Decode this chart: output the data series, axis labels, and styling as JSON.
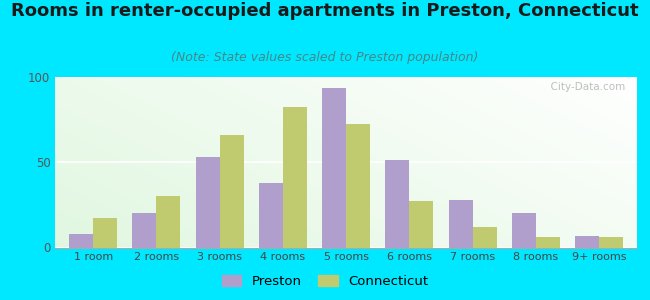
{
  "title": "Rooms in renter-occupied apartments in Preston, Connecticut",
  "subtitle": "(Note: State values scaled to Preston population)",
  "categories": [
    "1 room",
    "2 rooms",
    "3 rooms",
    "4 rooms",
    "5 rooms",
    "6 rooms",
    "7 rooms",
    "8 rooms",
    "9+ rooms"
  ],
  "preston_values": [
    8,
    20,
    53,
    38,
    93,
    51,
    28,
    20,
    7
  ],
  "connecticut_values": [
    17,
    30,
    66,
    82,
    72,
    27,
    12,
    6,
    6
  ],
  "preston_color": "#b09fcc",
  "connecticut_color": "#c0ca6e",
  "ylim": [
    0,
    100
  ],
  "yticks": [
    0,
    50,
    100
  ],
  "background_outer": "#00e8ff",
  "title_fontsize": 13,
  "subtitle_fontsize": 9,
  "watermark": "  City-Data.com",
  "bar_width": 0.38
}
